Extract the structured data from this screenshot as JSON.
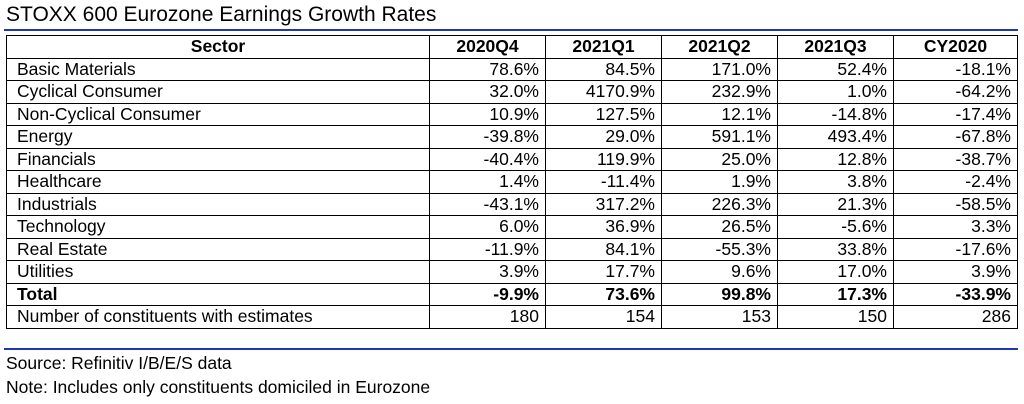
{
  "title": "STOXX 600 Eurozone Earnings Growth Rates",
  "source": "Source: Refinitiv I/B/E/S data",
  "note": "Note: Includes only constituents domiciled in Eurozone",
  "colors": {
    "rule": "#1f3aa8",
    "border": "#000000",
    "text": "#000000"
  },
  "chart_data": {
    "type": "table",
    "title": "STOXX 600 Eurozone Earnings Growth Rates",
    "columns": [
      "Sector",
      "2020Q4",
      "2021Q1",
      "2021Q2",
      "2021Q3",
      "CY2020"
    ],
    "rows": [
      {
        "sector": "Basic Materials",
        "values": [
          "78.6%",
          "84.5%",
          "171.0%",
          "52.4%",
          "-18.1%"
        ]
      },
      {
        "sector": "Cyclical Consumer",
        "values": [
          "32.0%",
          "4170.9%",
          "232.9%",
          "1.0%",
          "-64.2%"
        ]
      },
      {
        "sector": "Non-Cyclical Consumer",
        "values": [
          "10.9%",
          "127.5%",
          "12.1%",
          "-14.8%",
          "-17.4%"
        ]
      },
      {
        "sector": "Energy",
        "values": [
          "-39.8%",
          "29.0%",
          "591.1%",
          "493.4%",
          "-67.8%"
        ]
      },
      {
        "sector": "Financials",
        "values": [
          "-40.4%",
          "119.9%",
          "25.0%",
          "12.8%",
          "-38.7%"
        ]
      },
      {
        "sector": "Healthcare",
        "values": [
          "1.4%",
          "-11.4%",
          "1.9%",
          "3.8%",
          "-2.4%"
        ]
      },
      {
        "sector": "Industrials",
        "values": [
          "-43.1%",
          "317.2%",
          "226.3%",
          "21.3%",
          "-58.5%"
        ]
      },
      {
        "sector": "Technology",
        "values": [
          "6.0%",
          "36.9%",
          "26.5%",
          "-5.6%",
          "3.3%"
        ]
      },
      {
        "sector": "Real Estate",
        "values": [
          "-11.9%",
          "84.1%",
          "-55.3%",
          "33.8%",
          "-17.6%"
        ]
      },
      {
        "sector": "Utilities",
        "values": [
          "3.9%",
          "17.7%",
          "9.6%",
          "17.0%",
          "3.9%"
        ]
      },
      {
        "sector": "Total",
        "values": [
          "-9.9%",
          "73.6%",
          "99.8%",
          "17.3%",
          "-33.9%"
        ],
        "bold": true
      },
      {
        "sector": "Number of constituents with estimates",
        "values": [
          "180",
          "154",
          "153",
          "150",
          "286"
        ]
      }
    ]
  }
}
